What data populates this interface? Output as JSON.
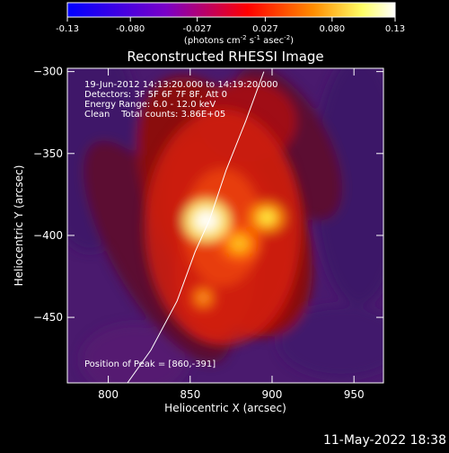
{
  "colorbar": {
    "ticks": [
      "-0.13",
      "-0.080",
      "-0.027",
      "0.027",
      "0.080",
      "0.13"
    ],
    "tick_values": [
      -0.13,
      -0.08,
      -0.027,
      0.027,
      0.08,
      0.13
    ],
    "min": -0.13,
    "max": 0.13,
    "unit_base": "(photons cm",
    "unit_exp1": "-2",
    "unit_mid1": " s",
    "unit_exp2": "-1",
    "unit_mid2": " asec",
    "unit_exp3": "-2",
    "unit_end": ")",
    "colors": [
      "#0000ff",
      "#7a00c8",
      "#ff0000",
      "#ff8c00",
      "#ffff66",
      "#ffffff"
    ]
  },
  "chart_data": {
    "type": "heatmap",
    "title": "Reconstructed RHESSI Image",
    "xlabel": "Heliocentric X (arcsec)",
    "ylabel": "Heliocentric Y (arcsec)",
    "xlim": [
      775,
      968
    ],
    "ylim": [
      -490,
      -298
    ],
    "xticks": [
      800,
      850,
      900,
      950
    ],
    "yticks": [
      -300,
      -350,
      -400,
      -450
    ],
    "xtick_labels": [
      "800",
      "850",
      "900",
      "950"
    ],
    "ytick_labels": [
      "−300",
      "−350",
      "−400",
      "−450"
    ],
    "info_lines": [
      "19-Jun-2012 14:13:20.000 to 14:19:20.000",
      "Detectors: 3F 5F 6F 7F 8F, Att 0",
      "Energy Range: 6.0 - 12.0 keV",
      "Clean    Total counts: 3.86E+05"
    ],
    "peak_label": "Position of Peak = [860,-391]",
    "peak": [
      860,
      -391
    ],
    "sources": [
      {
        "x": 860,
        "y": -391,
        "sx": 9,
        "sy": 8,
        "amp": 0.13
      },
      {
        "x": 897,
        "y": -389,
        "sx": 7,
        "sy": 6,
        "amp": 0.1
      },
      {
        "x": 880,
        "y": -405,
        "sx": 8,
        "sy": 7,
        "amp": 0.085
      },
      {
        "x": 858,
        "y": -438,
        "sx": 6,
        "sy": 6,
        "amp": 0.06
      },
      {
        "x": 870,
        "y": -395,
        "sx": 30,
        "sy": 45,
        "amp": 0.045
      }
    ],
    "limb_curve": [
      [
        806,
        -498
      ],
      [
        826,
        -470
      ],
      [
        842,
        -440
      ],
      [
        853,
        -410
      ],
      [
        862,
        -390
      ],
      [
        872,
        -360
      ],
      [
        884,
        -330
      ],
      [
        895,
        -300
      ]
    ]
  },
  "timestamp": "11-May-2022 18:38"
}
